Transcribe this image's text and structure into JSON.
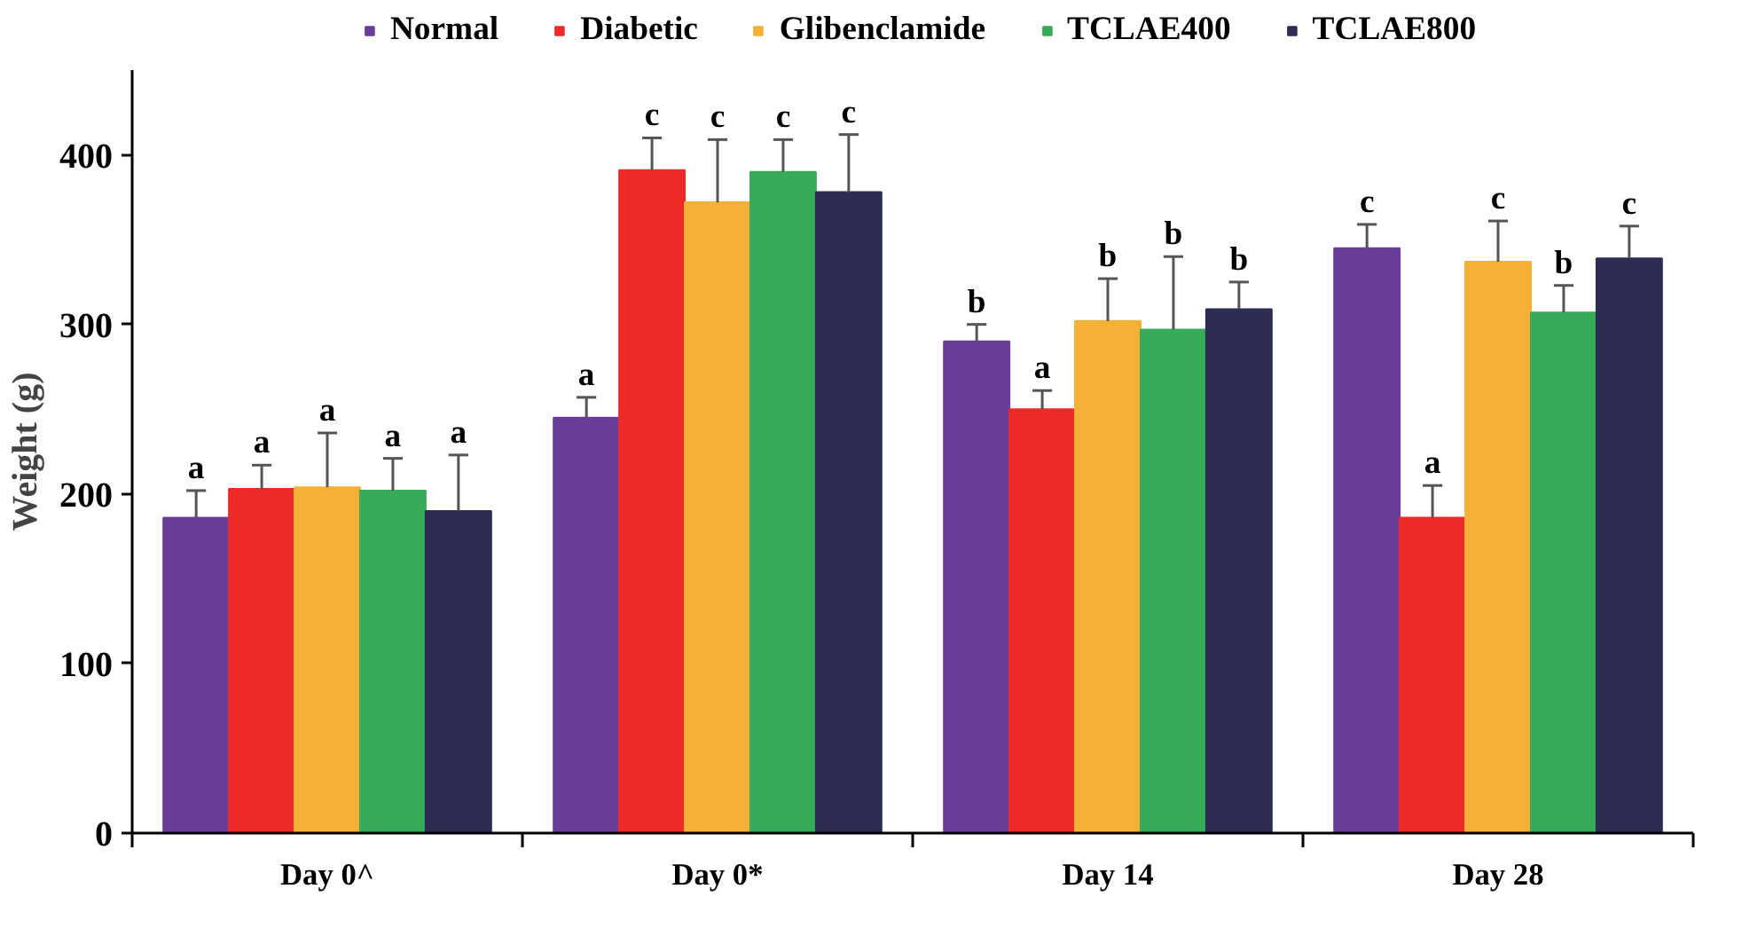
{
  "chart_data": {
    "type": "bar",
    "ylabel": "Weight (g)",
    "categories": [
      "Day 0^",
      "Day 0*",
      "Day 14",
      "Day 28"
    ],
    "ylim": [
      0,
      450
    ],
    "yticks": [
      0,
      100,
      200,
      300,
      400
    ],
    "grid": false,
    "legend": "top",
    "series": [
      {
        "name": "Normal",
        "color": "#6a3d9a",
        "values": [
          186,
          245,
          290,
          345
        ],
        "errors": [
          [
            186,
            202
          ],
          [
            245,
            257
          ],
          [
            290,
            300
          ],
          [
            345,
            359
          ]
        ],
        "value_labels": [
          "a",
          "a",
          "b",
          "c"
        ]
      },
      {
        "name": "Diabetic",
        "color": "#ee2a29",
        "values": [
          203,
          391,
          250,
          186
        ],
        "errors": [
          [
            203,
            217
          ],
          [
            391,
            410
          ],
          [
            250,
            261
          ],
          [
            186,
            205
          ]
        ],
        "value_labels": [
          "a",
          "c",
          "a",
          "a"
        ]
      },
      {
        "name": "Glibenclamide",
        "color": "#f4b136",
        "values": [
          204,
          372,
          302,
          337
        ],
        "errors": [
          [
            204,
            236
          ],
          [
            372,
            409
          ],
          [
            302,
            327
          ],
          [
            337,
            361
          ]
        ],
        "value_labels": [
          "a",
          "c",
          "b",
          "c"
        ]
      },
      {
        "name": "TCLAE400",
        "color": "#37ab58",
        "values": [
          202,
          390,
          297,
          307
        ],
        "errors": [
          [
            202,
            221
          ],
          [
            390,
            409
          ],
          [
            297,
            340
          ],
          [
            307,
            323
          ]
        ],
        "value_labels": [
          "a",
          "c",
          "b",
          "b"
        ]
      },
      {
        "name": "TCLAE800",
        "color": "#2c2c54",
        "values": [
          190,
          378,
          309,
          339
        ],
        "errors": [
          [
            190,
            223
          ],
          [
            378,
            412
          ],
          [
            309,
            325
          ],
          [
            339,
            358
          ]
        ],
        "value_labels": [
          "a",
          "c",
          "b",
          "c"
        ]
      }
    ]
  }
}
